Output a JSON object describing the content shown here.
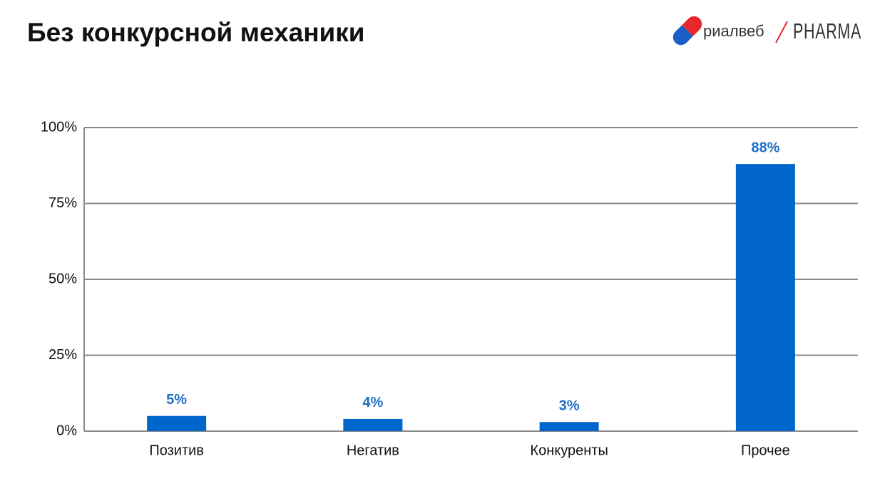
{
  "chart_data": {
    "type": "bar",
    "title": "Без конкурсной механики",
    "categories": [
      "Позитив",
      "Негатив",
      "Конкуренты",
      "Прочее"
    ],
    "values": [
      5,
      4,
      3,
      88
    ],
    "value_labels": [
      "5%",
      "4%",
      "3%",
      "88%"
    ],
    "color": "#0066cc",
    "ylim": [
      0,
      100
    ],
    "yticks": [
      {
        "value": 0,
        "label": "0%"
      },
      {
        "value": 25,
        "label": "25%"
      },
      {
        "value": 50,
        "label": "50%"
      },
      {
        "value": 75,
        "label": "75%"
      },
      {
        "value": 100,
        "label": "100%"
      }
    ],
    "grid": true
  },
  "logo": {
    "brand": "риалвеб",
    "product": "PHARMA"
  }
}
